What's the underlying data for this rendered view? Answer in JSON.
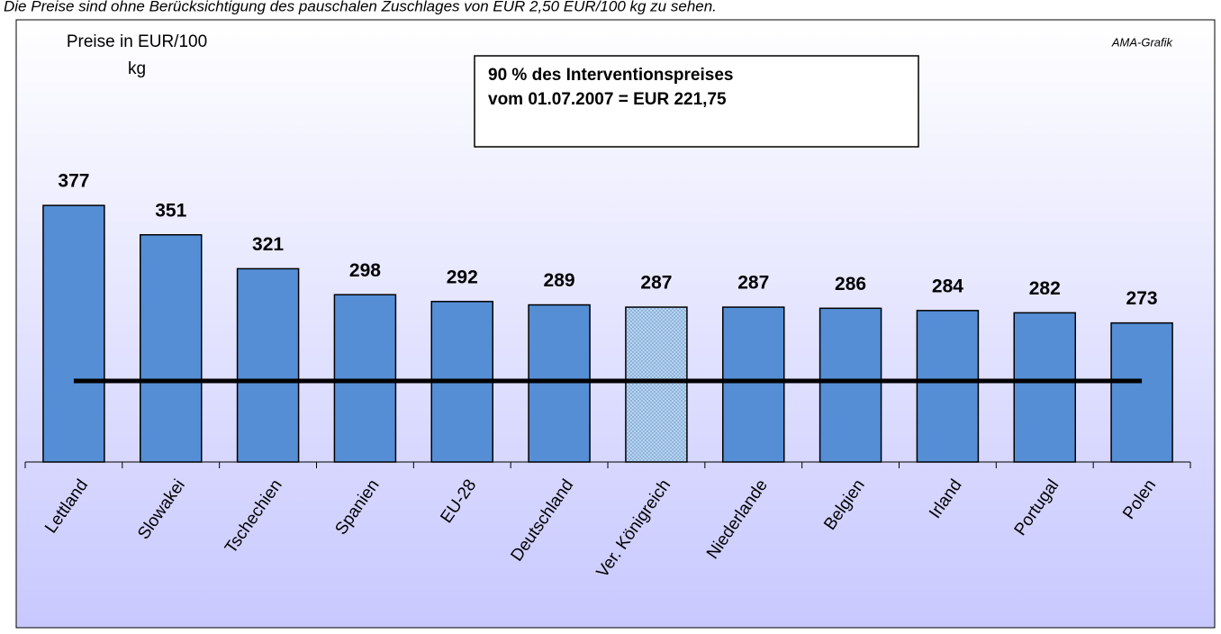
{
  "chart_data": {
    "type": "bar",
    "note": "Die Preise sind ohne Berücksichtigung des pauschalen Zuschlages von EUR 2,50 EUR/100 kg zu sehen.",
    "ylabel": [
      "Preise in EUR/100",
      "kg"
    ],
    "source": "AMA-Grafik",
    "annotation": [
      "90 % des Interventionspreises",
      "vom 01.07.2007 = EUR 221,75"
    ],
    "categories": [
      "Lettland",
      "Slowakei",
      "Tschechien",
      "Spanien",
      "EU-28",
      "Deutschland",
      "Ver. Königreich",
      "Niederlande",
      "Belgien",
      "Irland",
      "Portugal",
      "Polen"
    ],
    "values": [
      377,
      351,
      321,
      298,
      292,
      289,
      287,
      287,
      286,
      284,
      282,
      273
    ],
    "color": "#558ed5",
    "highlight_index": 6,
    "highlight_color": "#b7d3ee",
    "reference_line": 221.75,
    "ylim": [
      150,
      550
    ]
  }
}
